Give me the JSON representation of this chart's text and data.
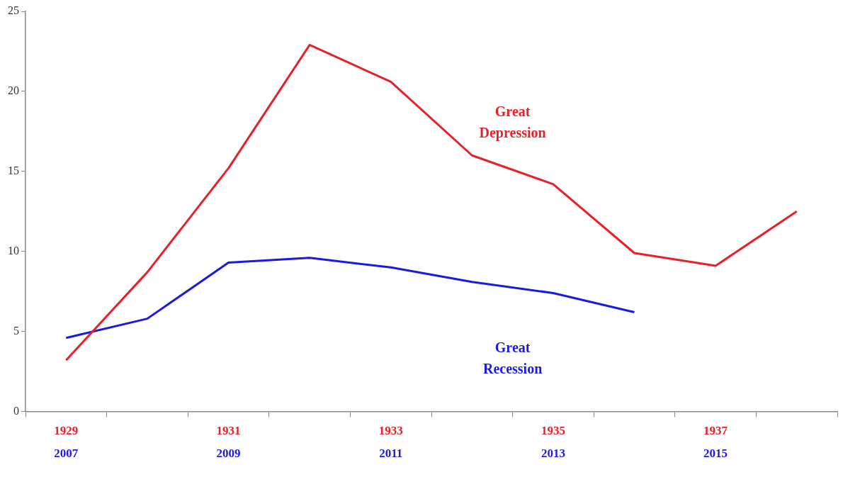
{
  "chart_data": {
    "type": "line",
    "categories": [
      "1929",
      null,
      "1931",
      null,
      "1933",
      null,
      "1935",
      null,
      "1937",
      null
    ],
    "series": [
      {
        "name": "Great Depression",
        "color": "#e8202a",
        "values": [
          3.2,
          8.7,
          15.2,
          22.9,
          20.6,
          16.0,
          14.2,
          9.9,
          9.1,
          12.5
        ]
      },
      {
        "name": "Great Recession",
        "color": "#1a1ae0",
        "values": [
          4.6,
          5.8,
          9.3,
          9.6,
          9.0,
          8.1,
          7.4,
          6.2,
          null,
          null
        ]
      }
    ],
    "annotations": [
      "2007",
      "2009",
      "2011",
      "2013",
      "2015"
    ],
    "ylim": [
      0,
      25
    ],
    "yticks": [
      0,
      5,
      10,
      15,
      20,
      25
    ],
    "grid": false,
    "legend": false,
    "marker": "none",
    "line_style": "solid"
  }
}
